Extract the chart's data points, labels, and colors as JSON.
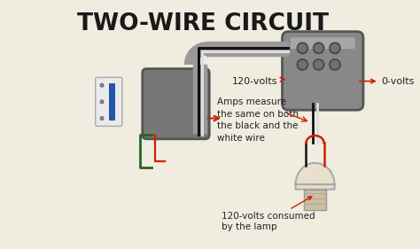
{
  "title": "TWO-WIRE CIRCUIT",
  "title_fontsize": 19,
  "title_weight": "bold",
  "title_color": "#1a1a1a",
  "bg_color": "#f0ece0",
  "label_120v_top": "120-volts",
  "label_0v": "0-volts",
  "label_amps": "Amps measure\nthe same on both\nthe black and the\nwhite wire",
  "label_120v_lamp": "120-volts consumed\nby the lamp",
  "junction_box_color": "#888888",
  "junction_box2_color": "#777777",
  "conduit_color": "#999999",
  "wire_black": "#111111",
  "wire_white": "#dddddd",
  "wire_red": "#cc2200",
  "wire_green": "#226622",
  "bulb_color": "#e8e0cc",
  "annotation_color": "#cc2200",
  "annotation_fontsize": 8,
  "text_color": "#222222"
}
